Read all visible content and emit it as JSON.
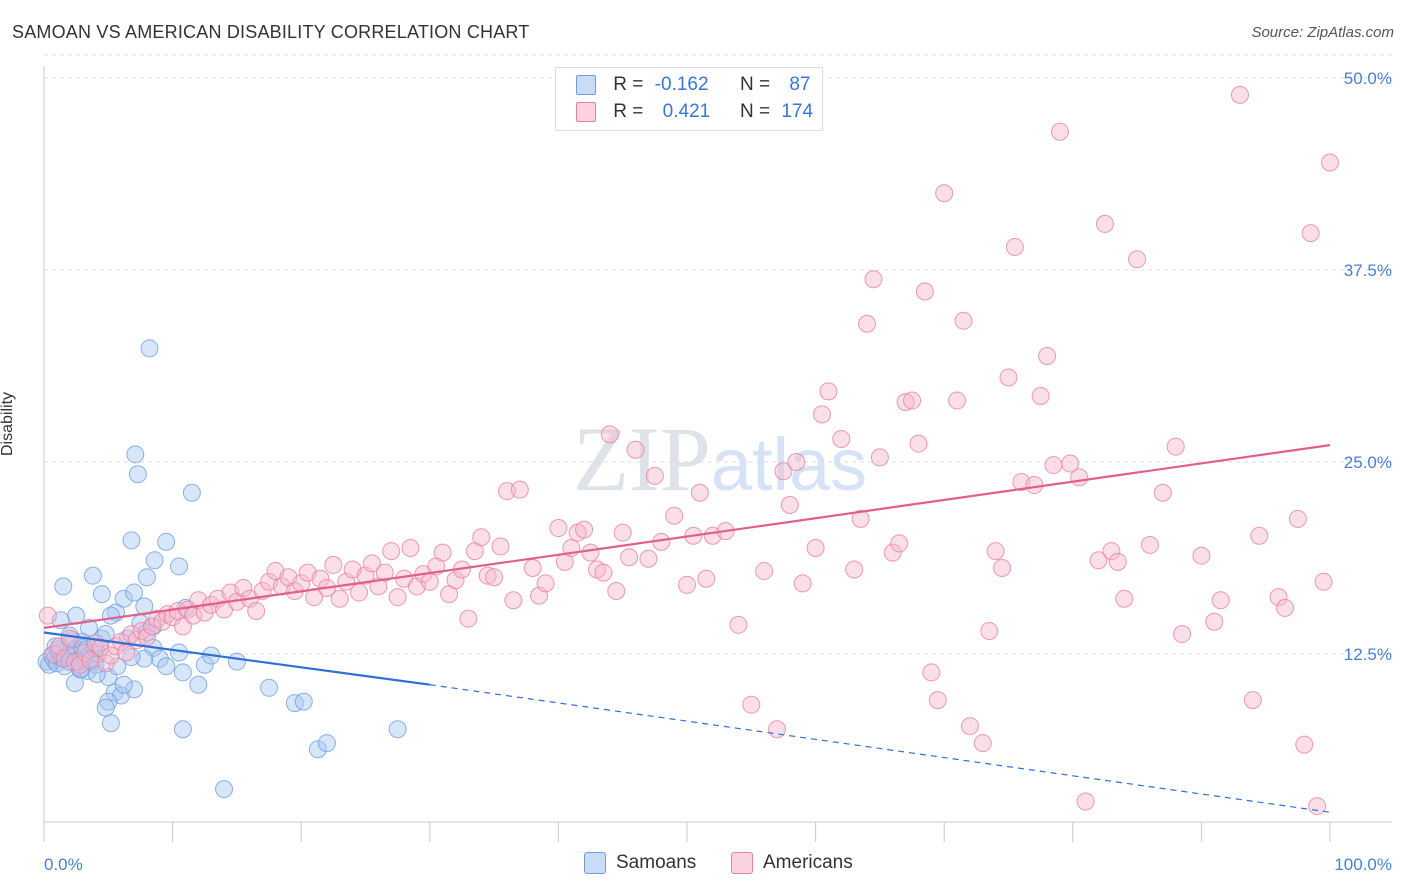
{
  "header": {
    "title": "SAMOAN VS AMERICAN DISABILITY CORRELATION CHART",
    "source": "Source: ZipAtlas.com"
  },
  "watermark": "ZIPatlas",
  "legend": {
    "rows": [
      {
        "r_label": "R =",
        "r_value": "-0.162",
        "n_label": "N =",
        "n_value": "87",
        "color": "#a9c8f2"
      },
      {
        "r_label": "R =",
        "r_value": "0.421",
        "n_label": "N =",
        "n_value": "174",
        "color": "#f6b8cb"
      }
    ]
  },
  "bottom_legend": {
    "items": [
      {
        "label": "Samoans",
        "color": "#a9c8f2"
      },
      {
        "label": "Americans",
        "color": "#f6b8cb"
      }
    ]
  },
  "chart_data": {
    "type": "scatter",
    "title": "SAMOAN VS AMERICAN DISABILITY CORRELATION CHART",
    "xlabel": "",
    "ylabel": "Disability",
    "xlim": [
      0,
      100
    ],
    "ylim": [
      0,
      52
    ],
    "x_tick_labels": [
      "0.0%",
      "100.0%"
    ],
    "y_ticks": [
      12.5,
      25.0,
      37.5,
      50.0
    ],
    "y_tick_labels": [
      "12.5%",
      "25.0%",
      "37.5%",
      "50.0%"
    ],
    "grid": true,
    "legend_position": "top-center",
    "series": [
      {
        "name": "Samoans",
        "color": "#6f9fe0",
        "fill": "#a9c8f2",
        "trend": {
          "x0": 0,
          "y0": 13.9,
          "x1": 30,
          "y1": 10.5,
          "dashed_to_x": 100,
          "dashed_to_y": 2.2,
          "color": "#2e6fd6"
        },
        "points": [
          [
            0.2,
            12.0
          ],
          [
            0.4,
            11.8
          ],
          [
            0.6,
            12.4
          ],
          [
            0.8,
            12.1
          ],
          [
            1.0,
            11.9
          ],
          [
            1.2,
            12.6
          ],
          [
            1.4,
            12.2
          ],
          [
            1.6,
            11.7
          ],
          [
            1.8,
            12.3
          ],
          [
            2.0,
            12.0
          ],
          [
            2.2,
            13.4
          ],
          [
            2.4,
            12.8
          ],
          [
            2.6,
            12.1
          ],
          [
            2.8,
            11.5
          ],
          [
            3.0,
            12.9
          ],
          [
            3.2,
            12.2
          ],
          [
            3.4,
            11.4
          ],
          [
            3.6,
            12.6
          ],
          [
            3.8,
            12.0
          ],
          [
            4.0,
            11.8
          ],
          [
            1.3,
            14.7
          ],
          [
            2.0,
            13.7
          ],
          [
            2.5,
            15.0
          ],
          [
            3.0,
            13.3
          ],
          [
            3.5,
            14.2
          ],
          [
            4.2,
            12.5
          ],
          [
            4.5,
            13.5
          ],
          [
            5.0,
            11.0
          ],
          [
            5.5,
            10.0
          ],
          [
            6.0,
            9.8
          ],
          [
            1.5,
            16.9
          ],
          [
            3.8,
            17.6
          ],
          [
            4.5,
            16.4
          ],
          [
            5.6,
            15.2
          ],
          [
            6.2,
            16.1
          ],
          [
            7.0,
            16.5
          ],
          [
            8.0,
            17.5
          ],
          [
            8.6,
            18.6
          ],
          [
            7.8,
            15.6
          ],
          [
            9.5,
            19.8
          ],
          [
            10.5,
            18.2
          ],
          [
            11.0,
            15.5
          ],
          [
            6.8,
            19.9
          ],
          [
            7.1,
            25.5
          ],
          [
            7.3,
            24.2
          ],
          [
            11.5,
            23.0
          ],
          [
            8.2,
            32.4
          ],
          [
            5.2,
            15.0
          ],
          [
            4.8,
            13.8
          ],
          [
            6.5,
            13.5
          ],
          [
            7.5,
            14.5
          ],
          [
            8.0,
            13.9
          ],
          [
            8.5,
            12.9
          ],
          [
            9.0,
            12.2
          ],
          [
            10.5,
            12.6
          ],
          [
            9.5,
            11.7
          ],
          [
            10.8,
            11.3
          ],
          [
            12.5,
            11.8
          ],
          [
            13.0,
            12.4
          ],
          [
            15.0,
            12.0
          ],
          [
            12.0,
            10.5
          ],
          [
            17.5,
            10.3
          ],
          [
            5.0,
            9.4
          ],
          [
            4.8,
            9.0
          ],
          [
            5.2,
            8.0
          ],
          [
            10.8,
            7.6
          ],
          [
            7.0,
            10.2
          ],
          [
            6.2,
            10.5
          ],
          [
            7.8,
            12.2
          ],
          [
            8.5,
            14.3
          ],
          [
            2.4,
            10.6
          ],
          [
            2.9,
            11.5
          ],
          [
            3.3,
            12.8
          ],
          [
            1.8,
            12.5
          ],
          [
            0.9,
            13.0
          ],
          [
            4.1,
            11.2
          ],
          [
            5.7,
            11.7
          ],
          [
            6.8,
            12.3
          ],
          [
            14.0,
            3.7
          ],
          [
            19.5,
            9.3
          ],
          [
            20.2,
            9.4
          ],
          [
            21.3,
            6.3
          ],
          [
            22.0,
            6.7
          ],
          [
            27.5,
            7.6
          ],
          [
            2.7,
            12.0
          ],
          [
            3.9,
            12.9
          ],
          [
            1.1,
            12.8
          ]
        ]
      },
      {
        "name": "Americans",
        "color": "#e8819f",
        "fill": "#f6b8cb",
        "trend": {
          "x0": 0,
          "y0": 14.2,
          "x1": 100,
          "y1": 26.1,
          "color": "#e0608a"
        },
        "points": [
          [
            0.3,
            15.0
          ],
          [
            0.8,
            12.5
          ],
          [
            1.2,
            13.0
          ],
          [
            1.6,
            12.2
          ],
          [
            2.0,
            13.5
          ],
          [
            2.4,
            12.0
          ],
          [
            2.8,
            11.8
          ],
          [
            3.2,
            12.6
          ],
          [
            3.6,
            12.1
          ],
          [
            4.0,
            13.2
          ],
          [
            4.4,
            12.9
          ],
          [
            4.8,
            11.9
          ],
          [
            5.2,
            12.4
          ],
          [
            5.6,
            13.0
          ],
          [
            6.0,
            13.3
          ],
          [
            6.4,
            12.6
          ],
          [
            6.8,
            13.8
          ],
          [
            7.2,
            13.4
          ],
          [
            7.6,
            14.0
          ],
          [
            8.0,
            13.6
          ],
          [
            8.4,
            14.3
          ],
          [
            8.8,
            14.8
          ],
          [
            9.2,
            14.6
          ],
          [
            9.6,
            15.1
          ],
          [
            10.0,
            14.9
          ],
          [
            10.4,
            15.3
          ],
          [
            10.8,
            14.3
          ],
          [
            11.2,
            15.4
          ],
          [
            11.6,
            15.0
          ],
          [
            12.0,
            16.0
          ],
          [
            12.5,
            15.2
          ],
          [
            13.0,
            15.7
          ],
          [
            13.5,
            16.1
          ],
          [
            14.0,
            15.4
          ],
          [
            14.5,
            16.5
          ],
          [
            15.0,
            15.9
          ],
          [
            15.5,
            16.8
          ],
          [
            16.0,
            16.1
          ],
          [
            16.5,
            15.3
          ],
          [
            17.0,
            16.6
          ],
          [
            17.5,
            17.2
          ],
          [
            18.0,
            17.9
          ],
          [
            18.5,
            16.9
          ],
          [
            19.0,
            17.5
          ],
          [
            19.5,
            16.6
          ],
          [
            20.0,
            17.1
          ],
          [
            20.5,
            17.8
          ],
          [
            21.0,
            16.2
          ],
          [
            21.5,
            17.4
          ],
          [
            22.0,
            16.8
          ],
          [
            22.5,
            18.3
          ],
          [
            23.0,
            16.1
          ],
          [
            23.5,
            17.2
          ],
          [
            24.0,
            18.0
          ],
          [
            24.5,
            16.5
          ],
          [
            25.0,
            17.6
          ],
          [
            25.5,
            18.4
          ],
          [
            26.0,
            16.9
          ],
          [
            26.5,
            17.8
          ],
          [
            27.0,
            19.2
          ],
          [
            27.5,
            16.2
          ],
          [
            28.0,
            17.4
          ],
          [
            28.5,
            19.4
          ],
          [
            29.0,
            16.9
          ],
          [
            29.5,
            17.7
          ],
          [
            30.0,
            17.2
          ],
          [
            30.5,
            18.2
          ],
          [
            31.0,
            19.1
          ],
          [
            31.5,
            16.4
          ],
          [
            32.0,
            17.3
          ],
          [
            32.5,
            18.0
          ],
          [
            33.0,
            14.8
          ],
          [
            33.5,
            19.2
          ],
          [
            34.0,
            20.1
          ],
          [
            34.5,
            17.6
          ],
          [
            35.0,
            17.5
          ],
          [
            35.5,
            19.5
          ],
          [
            36.0,
            23.1
          ],
          [
            36.5,
            16.0
          ],
          [
            37.0,
            23.2
          ],
          [
            38.0,
            18.1
          ],
          [
            38.5,
            16.3
          ],
          [
            39.0,
            17.1
          ],
          [
            40.0,
            20.7
          ],
          [
            40.5,
            18.5
          ],
          [
            41.0,
            19.4
          ],
          [
            41.5,
            20.4
          ],
          [
            42.0,
            20.6
          ],
          [
            42.5,
            19.1
          ],
          [
            43.0,
            18.0
          ],
          [
            43.5,
            17.8
          ],
          [
            44.0,
            26.8
          ],
          [
            44.5,
            16.6
          ],
          [
            45.0,
            20.4
          ],
          [
            45.5,
            18.8
          ],
          [
            46.0,
            25.8
          ],
          [
            47.0,
            18.7
          ],
          [
            47.5,
            24.1
          ],
          [
            48.0,
            19.8
          ],
          [
            49.0,
            21.5
          ],
          [
            50.0,
            17.0
          ],
          [
            50.5,
            20.2
          ],
          [
            51.0,
            23.0
          ],
          [
            51.5,
            17.4
          ],
          [
            52.0,
            20.2
          ],
          [
            53.0,
            20.5
          ],
          [
            54.0,
            14.4
          ],
          [
            55.0,
            9.2
          ],
          [
            56.0,
            17.9
          ],
          [
            57.0,
            7.6
          ],
          [
            57.5,
            24.4
          ],
          [
            58.0,
            22.2
          ],
          [
            58.5,
            25.0
          ],
          [
            59.0,
            17.1
          ],
          [
            60.0,
            19.4
          ],
          [
            60.5,
            28.1
          ],
          [
            61.0,
            29.6
          ],
          [
            62.0,
            26.5
          ],
          [
            63.0,
            18.0
          ],
          [
            63.5,
            21.3
          ],
          [
            64.0,
            34.0
          ],
          [
            64.5,
            36.9
          ],
          [
            65.0,
            25.3
          ],
          [
            66.0,
            19.1
          ],
          [
            66.5,
            19.7
          ],
          [
            67.0,
            28.9
          ],
          [
            67.5,
            29.0
          ],
          [
            68.0,
            26.2
          ],
          [
            68.5,
            36.1
          ],
          [
            69.0,
            11.3
          ],
          [
            69.5,
            9.5
          ],
          [
            70.0,
            42.5
          ],
          [
            71.0,
            29.0
          ],
          [
            71.5,
            34.2
          ],
          [
            72.0,
            7.8
          ],
          [
            73.0,
            6.7
          ],
          [
            73.5,
            14.0
          ],
          [
            74.0,
            19.2
          ],
          [
            74.5,
            18.1
          ],
          [
            75.0,
            30.5
          ],
          [
            75.5,
            39.0
          ],
          [
            76.0,
            23.7
          ],
          [
            77.0,
            23.5
          ],
          [
            77.5,
            29.3
          ],
          [
            78.0,
            31.9
          ],
          [
            78.5,
            24.8
          ],
          [
            79.0,
            46.5
          ],
          [
            80.5,
            24.0
          ],
          [
            82.0,
            18.6
          ],
          [
            82.5,
            40.5
          ],
          [
            83.0,
            19.2
          ],
          [
            83.5,
            18.5
          ],
          [
            84.0,
            16.1
          ],
          [
            85.0,
            38.2
          ],
          [
            86.0,
            19.6
          ],
          [
            87.0,
            23.0
          ],
          [
            88.0,
            26.0
          ],
          [
            88.5,
            13.8
          ],
          [
            90.0,
            18.9
          ],
          [
            91.0,
            14.6
          ],
          [
            91.5,
            16.0
          ],
          [
            93.0,
            48.9
          ],
          [
            94.0,
            9.5
          ],
          [
            94.5,
            20.2
          ],
          [
            96.0,
            16.2
          ],
          [
            96.5,
            15.5
          ],
          [
            97.5,
            21.3
          ],
          [
            98.0,
            6.6
          ],
          [
            98.5,
            39.9
          ],
          [
            99.0,
            2.6
          ],
          [
            99.5,
            17.2
          ],
          [
            100.0,
            44.5
          ],
          [
            81.0,
            2.9
          ],
          [
            79.8,
            24.9
          ]
        ]
      }
    ]
  }
}
